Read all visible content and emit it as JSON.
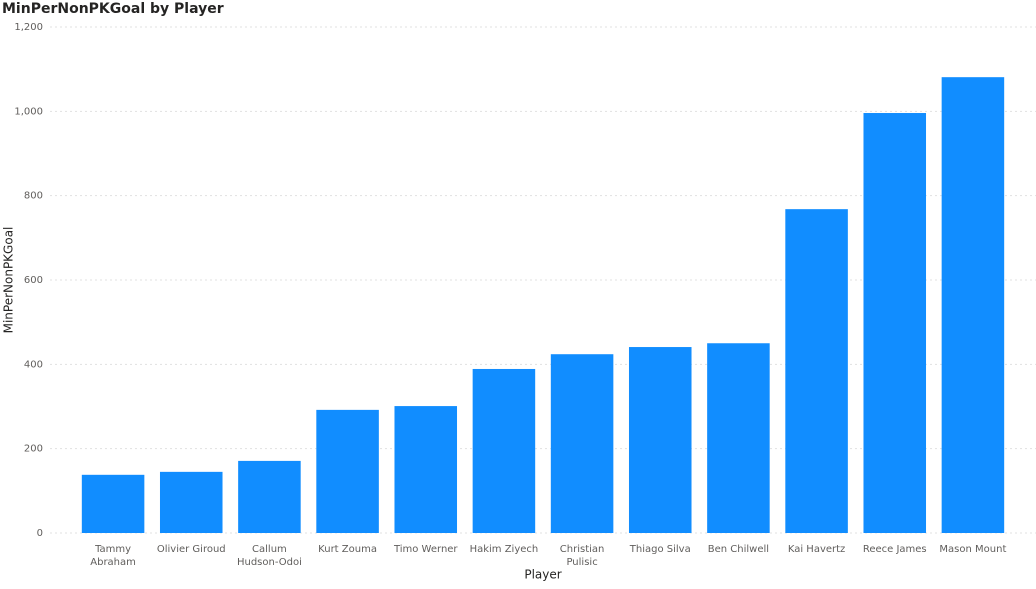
{
  "chart_data": {
    "type": "bar",
    "title": "MinPerNonPKGoal by Player",
    "x_label": "Player",
    "y_label": "MinPerNonPKGoal",
    "categories": [
      "Tammy Abraham",
      "Olivier Giroud",
      "Callum Hudson-Odoi",
      "Kurt Zouma",
      "Timo Werner",
      "Hakim Ziyech",
      "Christian Pulisic",
      "Thiago Silva",
      "Ben Chilwell",
      "Kai Havertz",
      "Reece James",
      "Mason Mount"
    ],
    "values": [
      138,
      145,
      171,
      292,
      301,
      389,
      424,
      441,
      450,
      768,
      996,
      1081
    ],
    "color": "#118dff",
    "ylim": [
      0,
      1200
    ],
    "yticks": [
      0,
      200,
      400,
      600,
      800,
      {
        "value": 1000,
        "label": "1,000"
      },
      {
        "value": 1200,
        "label": "1,200"
      }
    ],
    "grid": true
  }
}
